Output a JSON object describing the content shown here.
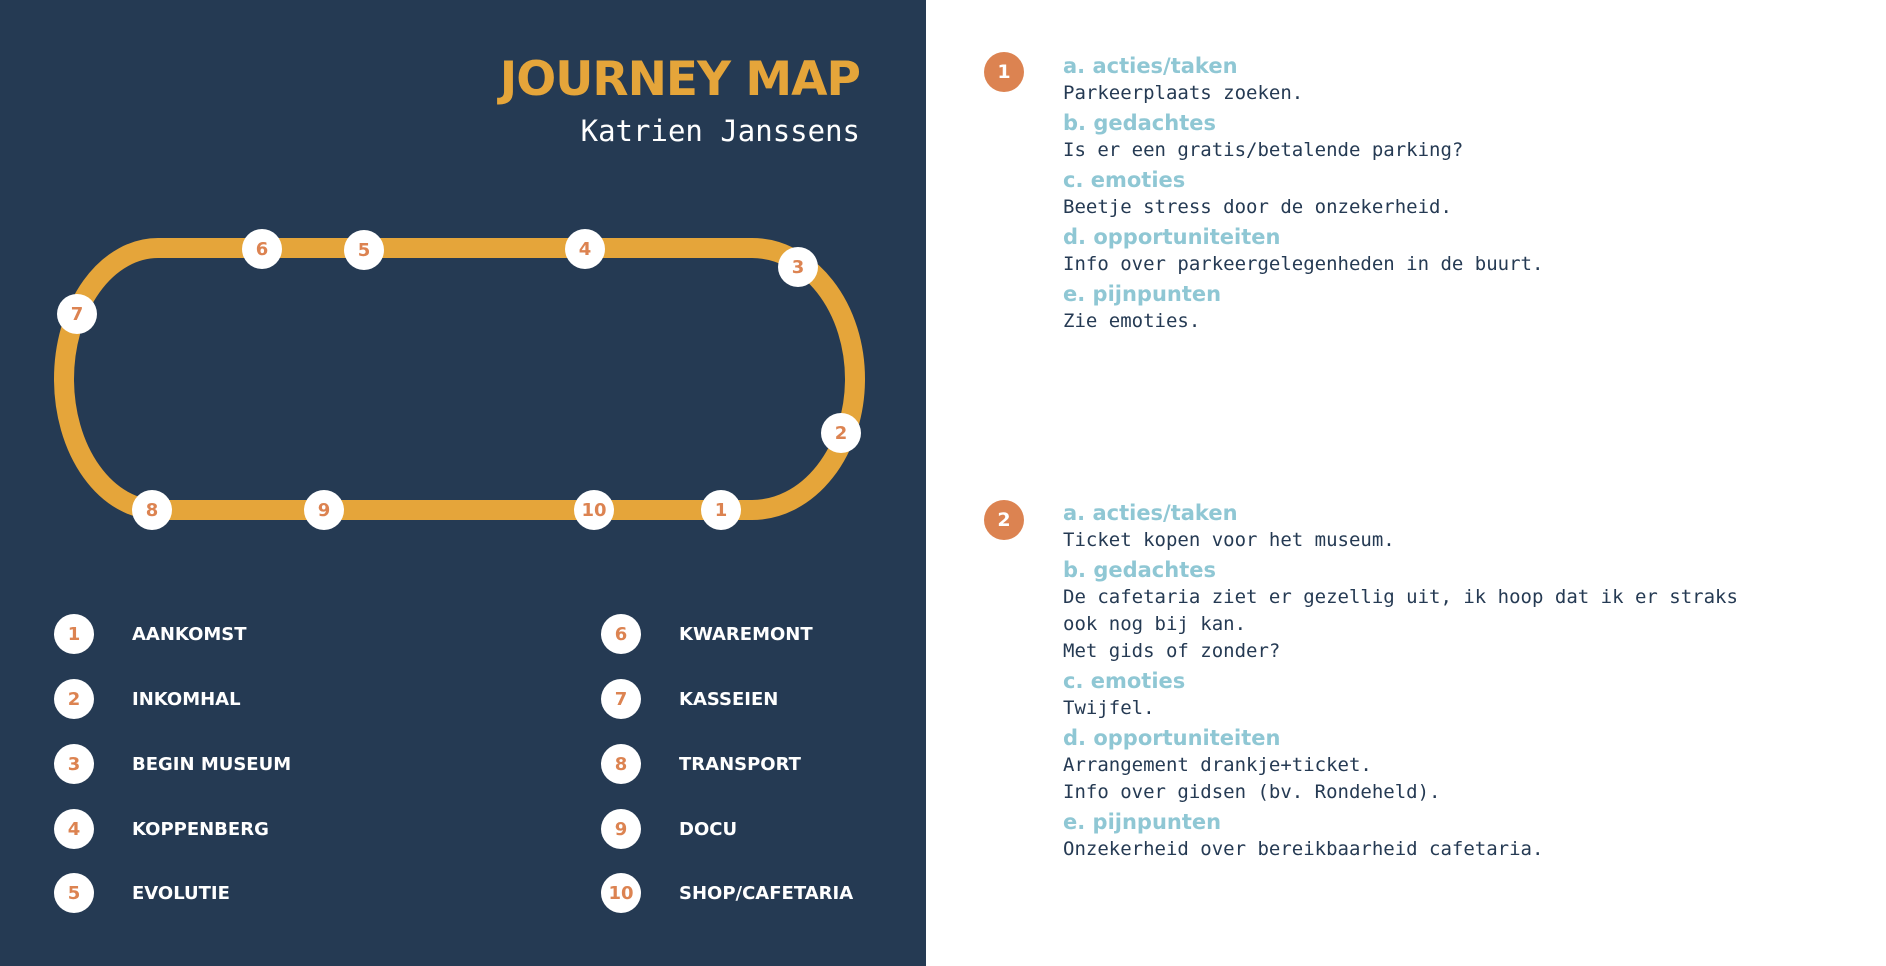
{
  "header": {
    "title": "JOURNEY MAP",
    "subtitle": "Katrien Janssens"
  },
  "colors": {
    "panel": "#253a53",
    "track": "#e5a53a",
    "accent": "#dc8351",
    "heading": "#8fc7d4",
    "text": "#253a53"
  },
  "stops": [
    {
      "num": "1"
    },
    {
      "num": "2"
    },
    {
      "num": "3"
    },
    {
      "num": "4"
    },
    {
      "num": "5"
    },
    {
      "num": "6"
    },
    {
      "num": "7"
    },
    {
      "num": "8"
    },
    {
      "num": "9"
    },
    {
      "num": "10"
    }
  ],
  "legend": [
    {
      "num": "1",
      "label": "AANKOMST"
    },
    {
      "num": "2",
      "label": "INKOMHAL"
    },
    {
      "num": "3",
      "label": "BEGIN MUSEUM"
    },
    {
      "num": "4",
      "label": "KOPPENBERG"
    },
    {
      "num": "5",
      "label": "EVOLUTIE"
    },
    {
      "num": "6",
      "label": "KWAREMONT"
    },
    {
      "num": "7",
      "label": "KASSEIEN"
    },
    {
      "num": "8",
      "label": "TRANSPORT"
    },
    {
      "num": "9",
      "label": "DOCU"
    },
    {
      "num": "10",
      "label": "SHOP/CAFETARIA"
    }
  ],
  "steps": [
    {
      "num": "1",
      "sections": [
        {
          "head": "a. acties/taken",
          "text": "Parkeerplaats zoeken."
        },
        {
          "head": "b. gedachtes",
          "text": "Is er een gratis/betalende parking?"
        },
        {
          "head": "c. emoties",
          "text": "Beetje stress door de onzekerheid."
        },
        {
          "head": "d. opportuniteiten",
          "text": "Info over parkeergelegenheden in de buurt."
        },
        {
          "head": "e. pijnpunten",
          "text": "Zie emoties."
        }
      ]
    },
    {
      "num": "2",
      "sections": [
        {
          "head": "a. acties/taken",
          "text": "Ticket kopen voor het museum."
        },
        {
          "head": "b. gedachtes",
          "text": "De cafetaria ziet er gezellig uit, ik hoop dat ik er straks\nook nog bij kan.\nMet gids of zonder?"
        },
        {
          "head": "c. emoties",
          "text": "Twijfel."
        },
        {
          "head": "d. opportuniteiten",
          "text": "Arrangement drankje+ticket.\nInfo over gidsen (bv. Rondeheld)."
        },
        {
          "head": "e. pijnpunten",
          "text": "Onzekerheid over bereikbaarheid cafetaria."
        }
      ]
    }
  ]
}
